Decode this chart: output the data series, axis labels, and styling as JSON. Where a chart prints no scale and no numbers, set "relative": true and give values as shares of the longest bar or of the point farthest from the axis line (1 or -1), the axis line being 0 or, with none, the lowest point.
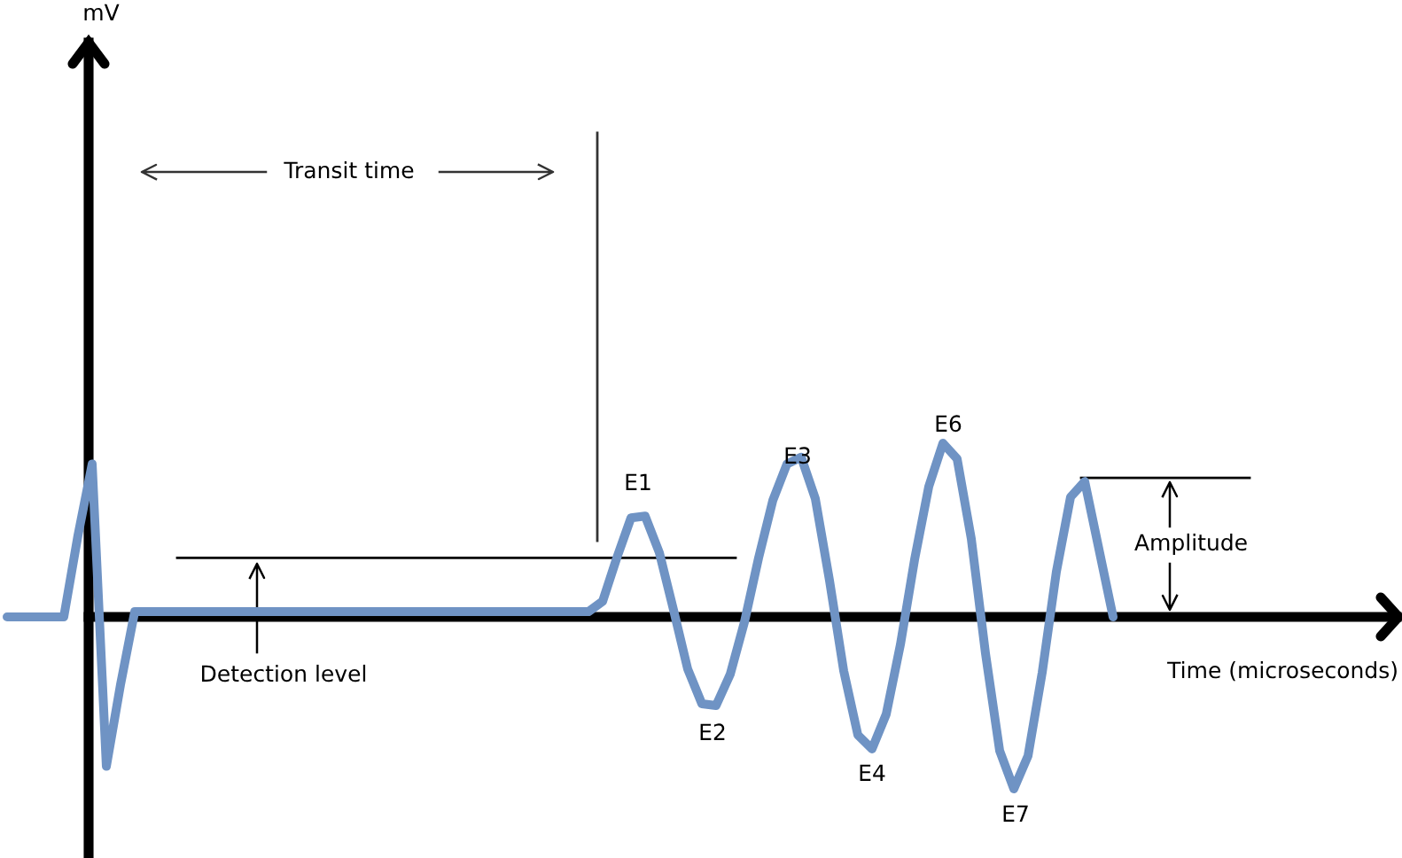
{
  "chart_data": {
    "type": "line",
    "relative": true,
    "color": "#6f93c4",
    "xlabel": "Time (microseconds)",
    "grid": false,
    "legend": false,
    "marker": "none",
    "line_style": "solid",
    "categories": [
      null,
      null,
      null,
      null,
      null,
      null,
      null,
      null,
      null,
      null,
      null,
      null,
      null,
      null,
      null,
      null,
      null,
      null,
      null,
      null,
      null,
      null,
      null,
      null,
      null,
      null,
      null,
      null,
      null,
      null,
      null,
      null,
      null,
      null,
      null,
      null,
      null,
      null,
      null,
      null,
      null,
      null,
      null,
      null,
      null,
      null,
      null,
      null,
      null,
      null,
      null,
      null,
      null,
      null,
      null,
      null,
      null,
      null,
      null,
      null,
      null,
      null,
      null,
      null,
      null,
      null,
      null,
      null,
      null,
      null,
      null,
      null,
      null,
      null,
      null,
      null,
      null,
      null,
      null,
      null,
      null,
      null,
      null,
      null,
      null,
      null,
      null,
      null,
      null,
      null,
      null,
      null,
      null,
      null,
      null,
      null,
      null,
      null,
      null
    ],
    "values": [
      0,
      0,
      0,
      0,
      0,
      0.47,
      0.88,
      -0.86,
      -0.39,
      0.03,
      0.03,
      0.03,
      0.03,
      0.03,
      0.03,
      0.03,
      0.03,
      0.03,
      0.03,
      0.03,
      0.03,
      0.03,
      0.03,
      0.03,
      0.03,
      0.03,
      0.03,
      0.03,
      0.03,
      0.03,
      0.03,
      0.03,
      0.03,
      0.03,
      0.03,
      0.03,
      0.03,
      0.03,
      0.03,
      0.03,
      0.03,
      0.03,
      0.09,
      0.34,
      0.57,
      0.58,
      0.37,
      0.04,
      -0.3,
      -0.5,
      -0.51,
      -0.33,
      -0.03,
      0.34,
      0.67,
      0.88,
      0.92,
      0.68,
      0.21,
      -0.31,
      -0.68,
      -0.76,
      -0.56,
      -0.16,
      0.33,
      0.75,
      1,
      0.91,
      0.45,
      -0.21,
      -0.77,
      -0.99,
      -0.8,
      -0.32,
      0.26,
      0.69,
      0.78,
      0.39,
      0,
      null,
      null,
      null,
      null,
      null,
      null,
      null,
      null,
      null,
      null,
      null,
      null,
      null,
      null,
      null,
      null,
      null,
      null,
      null,
      null
    ],
    "ref_lines": [
      {
        "axis": "y",
        "value": 0.34,
        "color": "#000000"
      },
      {
        "axis": "y",
        "value": 0.8,
        "color": "#000000"
      }
    ],
    "annotations": [
      "mV",
      "Transit time",
      "E1",
      "E2",
      "E3",
      "E4",
      "E6",
      "E7",
      "Detection level",
      "Amplitude"
    ]
  }
}
